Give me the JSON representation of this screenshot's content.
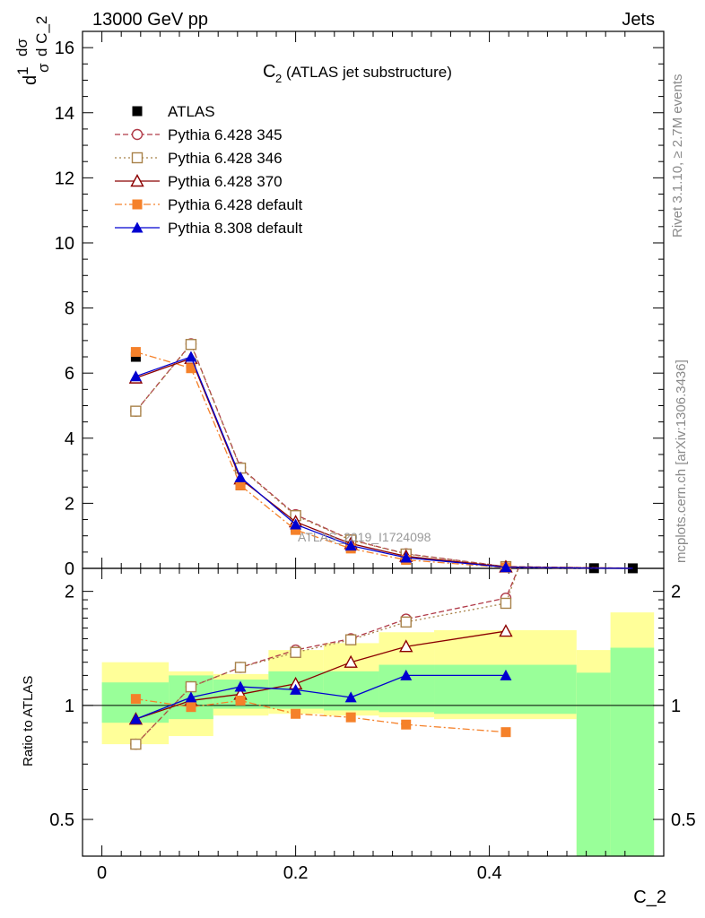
{
  "header": {
    "left": "13000 GeV pp",
    "right": "Jets"
  },
  "side": {
    "rivet": "Rivet 3.1.10, ≥ 2.7M events",
    "mcplots": "mcplots.cern.ch [arXiv:1306.3436]"
  },
  "plot_title": "(ATLAS jet substructure)",
  "plot_title_symbol": "C",
  "plot_title_sub": "2",
  "watermark": "ATLAS_2019_I1724098",
  "ylabel_main": "d1/σ dσ/d C_2",
  "ylabel_main_parts": {
    "d": "d",
    "one": "1",
    "sigma": "σ",
    "dsigma": "dσ",
    "dC": "d C_2"
  },
  "ylabel_ratio": "Ratio to ATLAS",
  "xlabel": "C_2",
  "main_ticks": [
    "0",
    "2",
    "4",
    "6",
    "8",
    "10",
    "12",
    "14",
    "16"
  ],
  "ratio_ticks": [
    "0.5",
    "1",
    "2"
  ],
  "x_ticks": [
    "0",
    "0.2",
    "0.4"
  ],
  "chart_data": [
    {
      "type": "line",
      "title": "C2 (ATLAS jet substructure)",
      "xlabel": "C_2",
      "ylabel": "1/σ dσ/d C_2",
      "xlim": [
        -0.02,
        0.58
      ],
      "ylim": [
        0,
        16.5
      ],
      "legend": "top-left",
      "x": [
        0.035,
        0.092,
        0.143,
        0.2,
        0.257,
        0.314,
        0.417,
        0.508,
        0.548
      ],
      "series": [
        {
          "name": "ATLAS",
          "color": "#000000",
          "marker": "square-filled",
          "values": [
            6.5,
            6.3,
            2.55,
            1.25,
            0.67,
            0.3,
            0.03,
            0.005,
            0.002
          ]
        },
        {
          "name": "Pythia 6.428 345",
          "color": "#b03a48",
          "marker": "circle-open",
          "dash": "6,3",
          "values": [
            4.83,
            6.9,
            3.1,
            1.65,
            0.88,
            0.45,
            0.055,
            0.02,
            0.008
          ]
        },
        {
          "name": "Pythia 6.428 346",
          "color": "#a8824a",
          "marker": "square-open",
          "dash": "2,3",
          "values": [
            4.83,
            6.88,
            3.08,
            1.62,
            0.87,
            0.44,
            0.053,
            0.018,
            0.007
          ]
        },
        {
          "name": "Pythia 6.428 370",
          "color": "#8b0000",
          "marker": "triangle-open",
          "dash": "",
          "values": [
            5.85,
            6.45,
            2.75,
            1.43,
            0.76,
            0.37,
            0.045,
            0.012,
            0.004
          ]
        },
        {
          "name": "Pythia 6.428 default",
          "color": "#f5812a",
          "marker": "square-filled",
          "dash": "8,3,2,3",
          "values": [
            6.65,
            6.15,
            2.55,
            1.18,
            0.61,
            0.26,
            0.025,
            0.004,
            0.001
          ]
        },
        {
          "name": "Pythia 8.308 default",
          "color": "#0000d0",
          "marker": "triangle-filled",
          "dash": "",
          "values": [
            5.9,
            6.5,
            2.8,
            1.35,
            0.7,
            0.33,
            0.035,
            0.006,
            0.002
          ]
        }
      ]
    },
    {
      "type": "line",
      "ylabel": "Ratio to ATLAS",
      "xlabel": "C_2",
      "xlim": [
        -0.02,
        0.58
      ],
      "ylim": [
        0.4,
        2.3
      ],
      "log_y": true,
      "x": [
        0.035,
        0.092,
        0.143,
        0.2,
        0.257,
        0.314,
        0.417
      ],
      "bands": {
        "edges": [
          0,
          0.069,
          0.115,
          0.172,
          0.229,
          0.286,
          0.343,
          0.49,
          0.525,
          0.57
        ],
        "inner": [
          [
            0.9,
            1.15
          ],
          [
            0.92,
            1.2
          ],
          [
            0.98,
            1.17
          ],
          [
            0.98,
            1.23
          ],
          [
            0.97,
            1.23
          ],
          [
            0.96,
            1.28
          ],
          [
            0.95,
            1.28
          ],
          [
            0.1,
            1.22
          ],
          [
            0.1,
            1.42
          ]
        ],
        "outer": [
          [
            0.79,
            1.3
          ],
          [
            0.83,
            1.23
          ],
          [
            0.94,
            1.21
          ],
          [
            0.95,
            1.4
          ],
          [
            0.94,
            1.46
          ],
          [
            0.93,
            1.56
          ],
          [
            0.92,
            1.58
          ],
          [
            0.1,
            1.4
          ],
          [
            0.1,
            1.76
          ]
        ],
        "inner_color": "#99ff99",
        "outer_color": "#ffff99"
      },
      "series": [
        {
          "name": "Pythia 6.428 345",
          "color": "#b03a48",
          "marker": "circle-open",
          "dash": "6,3",
          "values": [
            0.79,
            1.12,
            1.26,
            1.4,
            1.5,
            1.69,
            1.92
          ],
          "extend_to": [
            0.43,
            2.5
          ]
        },
        {
          "name": "Pythia 6.428 346",
          "color": "#a8824a",
          "marker": "square-open",
          "dash": "2,3",
          "values": [
            0.79,
            1.12,
            1.26,
            1.38,
            1.49,
            1.66,
            1.86
          ],
          "extend_to": [
            0.43,
            2.5
          ]
        },
        {
          "name": "Pythia 6.428 370",
          "color": "#8b0000",
          "marker": "triangle-open",
          "dash": "",
          "values": [
            0.92,
            1.03,
            1.07,
            1.14,
            1.3,
            1.43,
            1.57
          ]
        },
        {
          "name": "Pythia 6.428 default",
          "color": "#f5812a",
          "marker": "square-filled",
          "dash": "8,3,2,3",
          "values": [
            1.04,
            0.99,
            1.03,
            0.95,
            0.93,
            0.89,
            0.85
          ]
        },
        {
          "name": "Pythia 8.308 default",
          "color": "#0000d0",
          "marker": "triangle-filled",
          "dash": "",
          "values": [
            0.92,
            1.05,
            1.12,
            1.1,
            1.05,
            1.2,
            1.2
          ]
        }
      ]
    }
  ]
}
